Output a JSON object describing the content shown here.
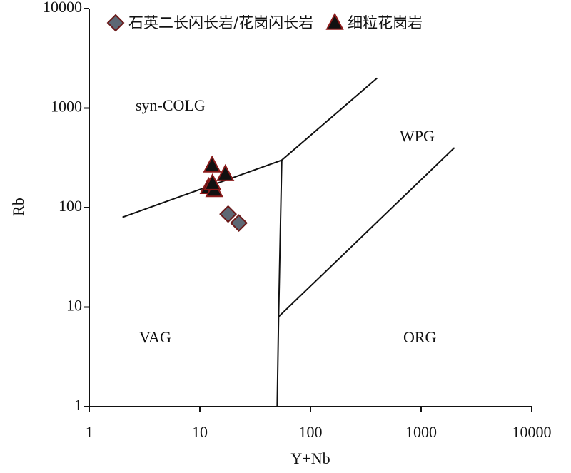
{
  "chart_data": {
    "type": "scatter",
    "xlabel": "Y+Nb",
    "ylabel": "Rb",
    "xscale": "log",
    "yscale": "log",
    "xlim": [
      1,
      10000
    ],
    "ylim": [
      1,
      10000
    ],
    "xticks": [
      1,
      10,
      100,
      1000,
      10000
    ],
    "yticks": [
      1,
      10,
      100,
      1000,
      10000
    ],
    "annotations": [
      "syn-COLG",
      "WPG",
      "VAG",
      "ORG"
    ],
    "boundaries": [
      {
        "x": [
          2,
          55,
          400
        ],
        "y": [
          80,
          300,
          2000
        ]
      },
      {
        "x": [
          55,
          51.5,
          50
        ],
        "y": [
          300,
          8,
          1
        ]
      },
      {
        "x": [
          51.5,
          2000
        ],
        "y": [
          8,
          400
        ]
      }
    ],
    "legend": "top",
    "series": [
      {
        "name": "石英二长闪长岩/花岗闪长岩",
        "marker": "diamond",
        "color": "#5d6874",
        "edgecolor": "#6b1a1a",
        "x": [
          18,
          22.5
        ],
        "y": [
          86,
          70
        ]
      },
      {
        "name": "细粒花岗岩",
        "marker": "triangle",
        "color": "#111111",
        "edgecolor": "#8b1a1a",
        "x": [
          12.9,
          17,
          12,
          13.5,
          13
        ],
        "y": [
          265,
          217,
          161,
          150,
          175
        ]
      }
    ]
  }
}
